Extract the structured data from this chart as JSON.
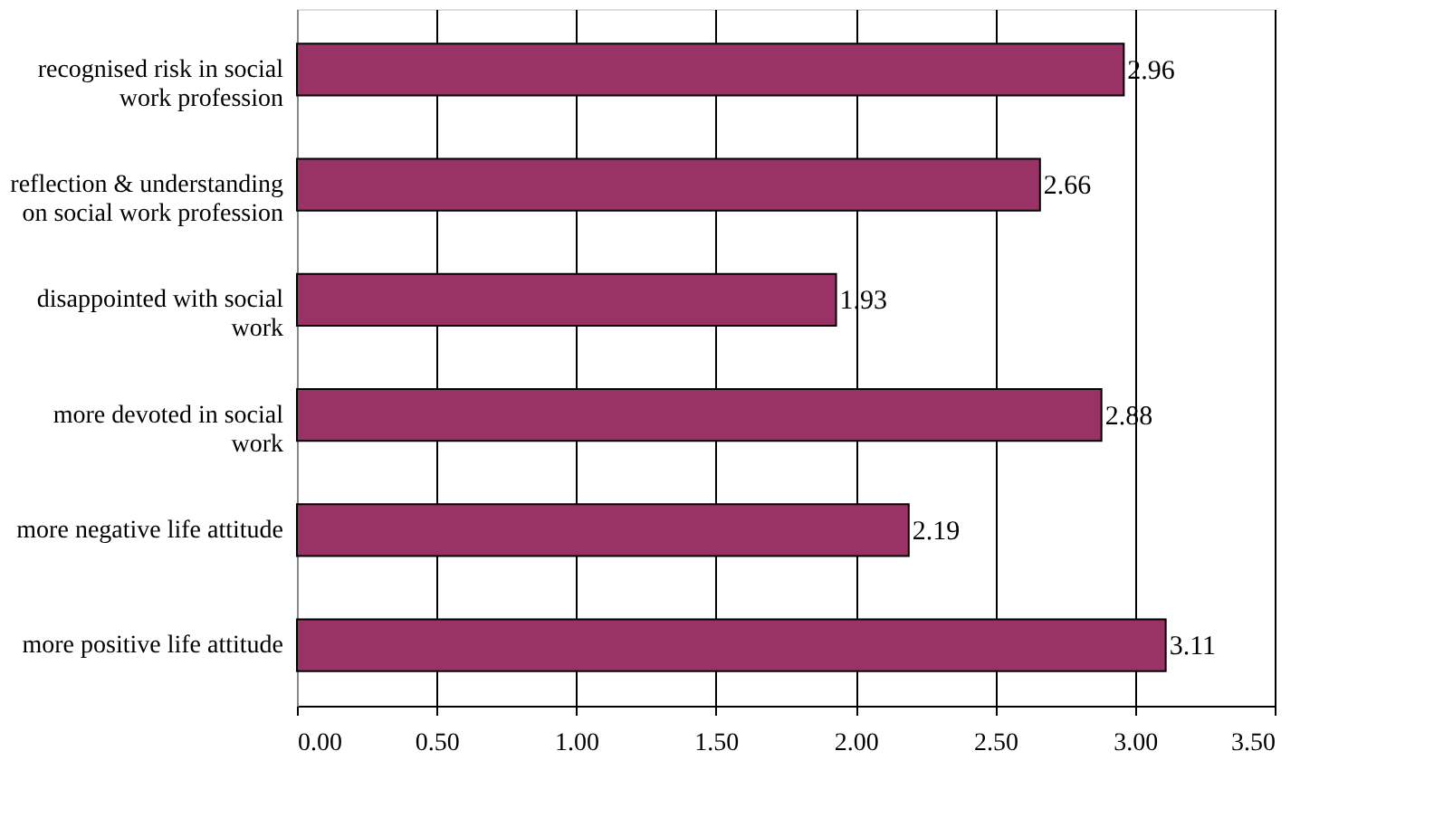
{
  "chart_data": {
    "type": "bar",
    "orientation": "horizontal",
    "categories": [
      "recognised risk in social work profession",
      "reflection & understanding on social work profession",
      "disappointed with social work",
      "more devoted in social work",
      "more negative life attitude",
      "more positive life attitude"
    ],
    "values": [
      2.96,
      2.66,
      1.93,
      2.88,
      2.19,
      3.11
    ],
    "color": "#993366",
    "data_labels": true,
    "grid": "x",
    "xlim": [
      0,
      3.5
    ],
    "xticks": [
      {
        "value": 0,
        "label": "0.00"
      },
      {
        "value": 0.5,
        "label": "0.50"
      },
      {
        "value": 1,
        "label": "1.00"
      },
      {
        "value": 1.5,
        "label": "1.50"
      },
      {
        "value": 2,
        "label": "2.00"
      },
      {
        "value": 2.5,
        "label": "2.50"
      },
      {
        "value": 3,
        "label": "3.00"
      },
      {
        "value": 3.5,
        "label": "3.50"
      }
    ]
  }
}
